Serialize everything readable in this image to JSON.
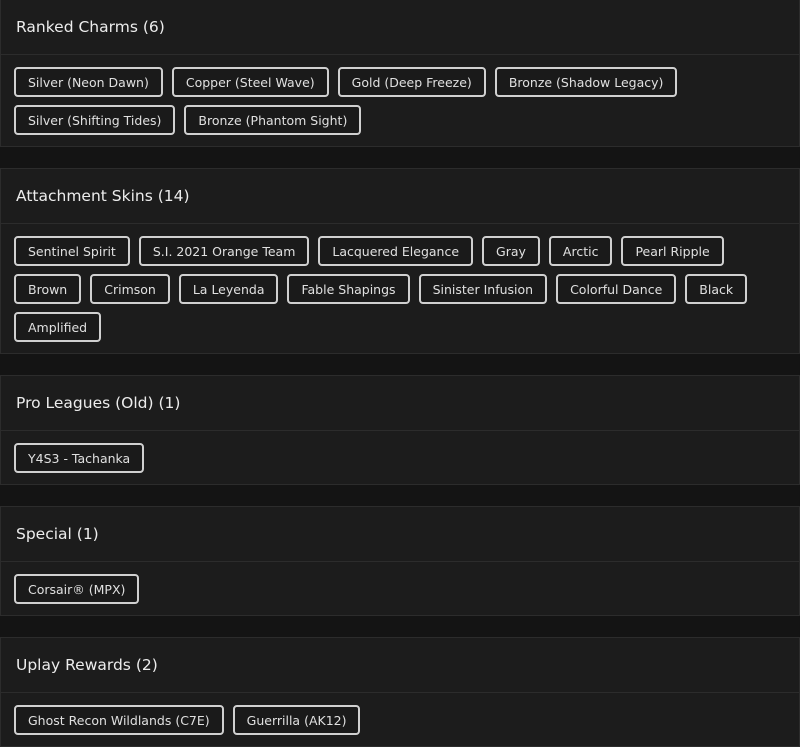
{
  "sections": [
    {
      "title": "Ranked Charms (6)",
      "items": [
        "Silver (Neon Dawn)",
        "Copper (Steel Wave)",
        "Gold (Deep Freeze)",
        "Bronze (Shadow Legacy)",
        "Silver (Shifting Tides)",
        "Bronze (Phantom Sight)"
      ]
    },
    {
      "title": "Attachment Skins (14)",
      "items": [
        "Sentinel Spirit",
        "S.I. 2021 Orange Team",
        "Lacquered Elegance",
        "Gray",
        "Arctic",
        "Pearl Ripple",
        "Brown",
        "Crimson",
        "La Leyenda",
        "Fable Shapings",
        "Sinister Infusion",
        "Colorful Dance",
        "Black",
        "Amplified"
      ]
    },
    {
      "title": "Pro Leagues (Old) (1)",
      "items": [
        "Y4S3 - Tachanka"
      ]
    },
    {
      "title": "Special (1)",
      "items": [
        "Corsair® (MPX)"
      ]
    },
    {
      "title": "Uplay Rewards (2)",
      "items": [
        "Ghost Recon Wildlands (C7E)",
        "Guerrilla (AK12)"
      ]
    }
  ]
}
